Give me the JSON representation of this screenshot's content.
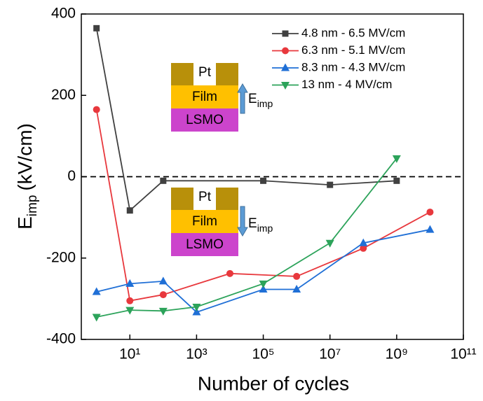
{
  "chart_data": {
    "type": "line",
    "x_label": "Number of cycles",
    "y_label": {
      "symbol": "E",
      "subscript": "imp",
      "unit": "(kV/cm)"
    },
    "x_scale": "log",
    "xlim": [
      0.35,
      100000000000
    ],
    "xticks": [
      {
        "value": 10,
        "label": "10¹"
      },
      {
        "value": 1000,
        "label": "10³"
      },
      {
        "value": 100000,
        "label": "10⁵"
      },
      {
        "value": 10000000,
        "label": "10⁷"
      },
      {
        "value": 1000000000,
        "label": "10⁹"
      },
      {
        "value": 100000000000,
        "label": "10¹¹"
      }
    ],
    "ylim": [
      -400,
      400
    ],
    "yticks": [
      400,
      200,
      0,
      -200,
      -400
    ],
    "reference_line": 0,
    "legend": "upper right",
    "series": [
      {
        "name": "4.8 nm - 6.5 MV/cm",
        "color": "#404040",
        "marker": "square",
        "x": [
          1,
          10,
          100,
          100000,
          10000000,
          1000000000
        ],
        "values": [
          365,
          -83,
          -10,
          -10,
          -20,
          -10
        ]
      },
      {
        "name": "6.3 nm - 5.1 MV/cm",
        "color": "#e8383d",
        "marker": "circle",
        "x": [
          1,
          10,
          100,
          10000,
          1000000,
          100000000,
          10000000000
        ],
        "values": [
          165,
          -305,
          -290,
          -238,
          -245,
          -176,
          -87
        ]
      },
      {
        "name": "8.3 nm - 4.3 MV/cm",
        "color": "#1f6fd6",
        "marker": "triangle-up",
        "x": [
          1,
          10,
          100,
          1000,
          100000,
          1000000,
          100000000,
          10000000000
        ],
        "values": [
          -283,
          -263,
          -257,
          -333,
          -277,
          -277,
          -163,
          -130
        ]
      },
      {
        "name": "13 nm - 4 MV/cm",
        "color": "#2ca35a",
        "marker": "triangle-down",
        "x": [
          1,
          10,
          100,
          1000,
          100000,
          10000000,
          1000000000
        ],
        "values": [
          -345,
          -328,
          -330,
          -320,
          -263,
          -163,
          45
        ]
      }
    ],
    "insets": [
      {
        "top": "Pt",
        "middle": "Film",
        "bottom": "LSMO",
        "field": {
          "symbol": "E",
          "subscript": "imp"
        }
      },
      {
        "top": "Pt",
        "middle": "Film",
        "bottom": "LSMO",
        "field": {
          "symbol": "E",
          "subscript": "imp"
        }
      }
    ]
  }
}
